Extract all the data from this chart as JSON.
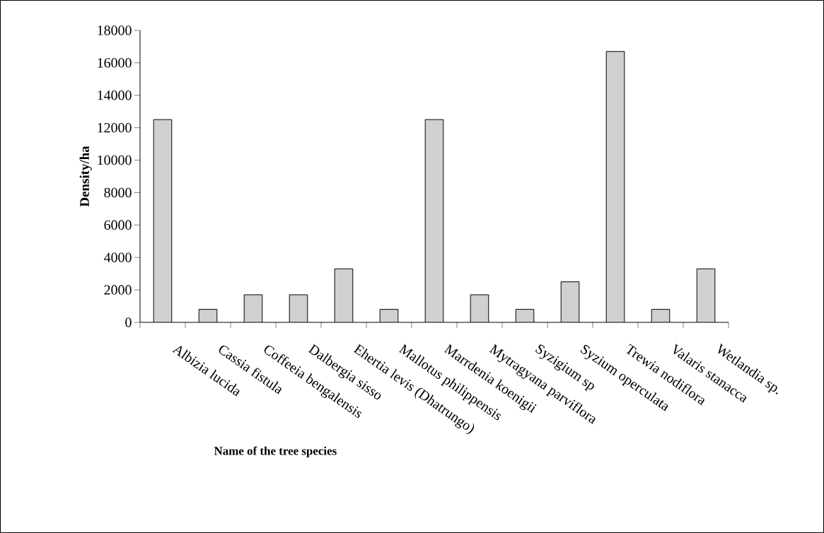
{
  "chart_data": {
    "type": "bar",
    "xlabel": "Name of the tree species",
    "ylabel": "Density/ha",
    "categories": [
      "Albizia lucida",
      "Cassia fistula",
      "Coffeeia bengalensis",
      "Dalbergia sisso",
      "Ehertia levis (Dhatrungo)",
      "Mallotus philippensis",
      "Marrdenia koenigii",
      "Mytragyana parviflora",
      "Syzigium sp",
      "Syzium operculata",
      "Trewia nodiflora",
      "Valaris stanacca",
      "Wetlandia sp."
    ],
    "values": [
      12500,
      800,
      1700,
      1700,
      3300,
      800,
      12500,
      1700,
      800,
      2500,
      16700,
      800,
      3300
    ],
    "color": "#d0d0d0",
    "ylim": [
      0,
      18000
    ],
    "yticks": [
      0,
      2000,
      4000,
      6000,
      8000,
      10000,
      12000,
      14000,
      16000,
      18000
    ]
  }
}
